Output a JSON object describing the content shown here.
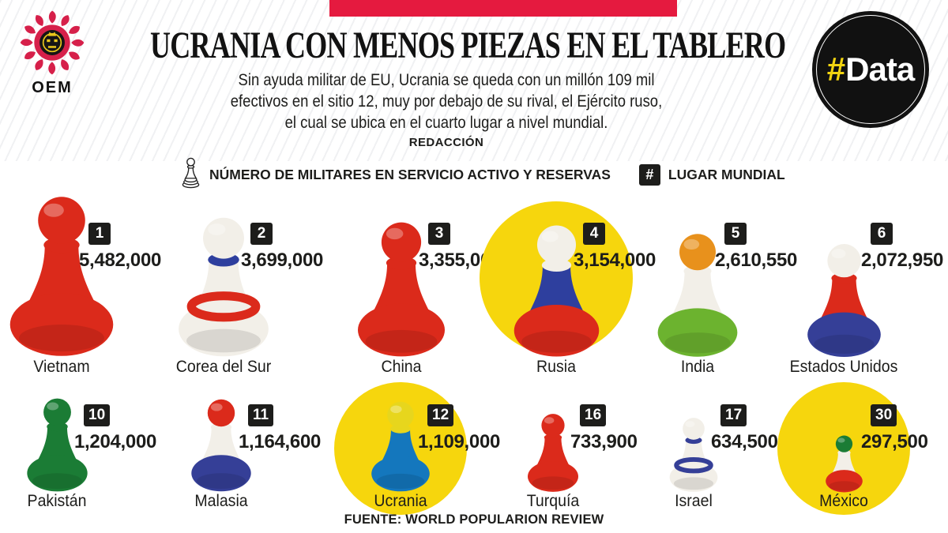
{
  "brand": {
    "oem_label": "OEM",
    "data_badge": {
      "hash": "#",
      "text": "Data",
      "hash_color": "#f2d410",
      "circle_color": "#111111"
    }
  },
  "header": {
    "accent_bar_color": "#e51a3f",
    "title": "UCRANIA CON MENOS PIEZAS EN EL TABLERO",
    "subtitle_lines": [
      "Sin ayuda militar de EU, Ucrania se queda con un millón 109 mil",
      "efectivos en el sitio 12, muy por debajo de su rival, el Ejército ruso,",
      "el cual se ubica en el cuarto lugar a nivel mundial."
    ],
    "byline": "REDACCIÓN"
  },
  "legend": {
    "military_label": "NÚMERO DE MILITARES EN SERVICIO ACTIVO Y RESERVAS",
    "rank_symbol": "#",
    "rank_label": "LUGAR MUNDIAL"
  },
  "footer": {
    "source": "FUENTE: WORLD POPULARION REVIEW"
  },
  "highlight_color": "#f6d60d",
  "chart_data": {
    "type": "pictogram",
    "title": "UCRANIA CON MENOS PIEZAS EN EL TABLERO",
    "metric_label": "NÚMERO DE MILITARES EN SERVICIO ACTIVO Y RESERVAS",
    "rank_metric_label": "LUGAR MUNDIAL",
    "layout": "2 rows x 6 chess pawns, pawn size proportional to personnel; Rusia, Ucrania and México highlighted with yellow circles",
    "series": [
      {
        "country": "Vietnam",
        "rank": "1",
        "personnel": 5482000,
        "personnel_display": "5,482,000",
        "highlighted": false,
        "colors": {
          "head": "#db2a1b",
          "collar": "#db2a1b",
          "body": "#db2a1b",
          "base": "#db2a1b",
          "ring": null
        }
      },
      {
        "country": "Corea del Sur",
        "rank": "2",
        "personnel": 3699000,
        "personnel_display": "3,699,000",
        "highlighted": false,
        "colors": {
          "head": "#f2efe8",
          "collar": "#2e3f9e",
          "body": "#f2efe8",
          "base": "#f2efe8",
          "ring": "#db2a1b"
        }
      },
      {
        "country": "China",
        "rank": "3",
        "personnel": 3355000,
        "personnel_display": "3,355,000",
        "highlighted": false,
        "colors": {
          "head": "#db2a1b",
          "collar": "#db2a1b",
          "body": "#db2a1b",
          "base": "#db2a1b",
          "ring": null
        }
      },
      {
        "country": "Rusia",
        "rank": "4",
        "personnel": 3154000,
        "personnel_display": "3,154,000",
        "highlighted": true,
        "colors": {
          "head": "#f2efe8",
          "collar": "#f2efe8",
          "body": "#2e3f9e",
          "base": "#db2a1b",
          "ring": null
        }
      },
      {
        "country": "India",
        "rank": "5",
        "personnel": 2610550,
        "personnel_display": "2,610,550",
        "highlighted": false,
        "colors": {
          "head": "#e8911c",
          "collar": "#f2efe8",
          "body": "#f2efe8",
          "base": "#6cb32f",
          "ring": null
        }
      },
      {
        "country": "Estados Unidos",
        "rank": "6",
        "personnel": 2072950,
        "personnel_display": "2,072,950",
        "highlighted": false,
        "colors": {
          "head": "#f2efe8",
          "collar": "#db2a1b",
          "body": "#db2a1b",
          "base": "#353f97",
          "ring": null
        }
      },
      {
        "country": "Pakistán",
        "rank": "10",
        "personnel": 1204000,
        "personnel_display": "1,204,000",
        "highlighted": false,
        "colors": {
          "head": "#1b7c35",
          "collar": "#1b7c35",
          "body": "#1b7c35",
          "base": "#1b7c35",
          "ring": null
        }
      },
      {
        "country": "Malasia",
        "rank": "11",
        "personnel": 1164600,
        "personnel_display": "1,164,600",
        "highlighted": false,
        "colors": {
          "head": "#db2a1b",
          "collar": "#f2efe8",
          "body": "#f2efe8",
          "base": "#353f97",
          "ring": null
        }
      },
      {
        "country": "Ucrania",
        "rank": "12",
        "personnel": 1109000,
        "personnel_display": "1,109,000",
        "highlighted": true,
        "colors": {
          "head": "#e7d61d",
          "collar": "#e7d61d",
          "body": "#1477bd",
          "base": "#1477bd",
          "ring": null
        }
      },
      {
        "country": "Turquía",
        "rank": "16",
        "personnel": 733900,
        "personnel_display": "733,900",
        "highlighted": false,
        "colors": {
          "head": "#db2a1b",
          "collar": "#db2a1b",
          "body": "#db2a1b",
          "base": "#db2a1b",
          "ring": null
        }
      },
      {
        "country": "Israel",
        "rank": "17",
        "personnel": 634500,
        "personnel_display": "634,500",
        "highlighted": false,
        "colors": {
          "head": "#f2efe8",
          "collar": "#353f97",
          "body": "#f2efe8",
          "base": "#f2efe8",
          "ring": "#353f97"
        }
      },
      {
        "country": "México",
        "rank": "30",
        "personnel": 297500,
        "personnel_display": "297,500",
        "highlighted": true,
        "colors": {
          "head": "#1b7c35",
          "collar": "#f2efe8",
          "body": "#f2efe8",
          "base": "#db2a1b",
          "ring": null
        }
      }
    ]
  }
}
